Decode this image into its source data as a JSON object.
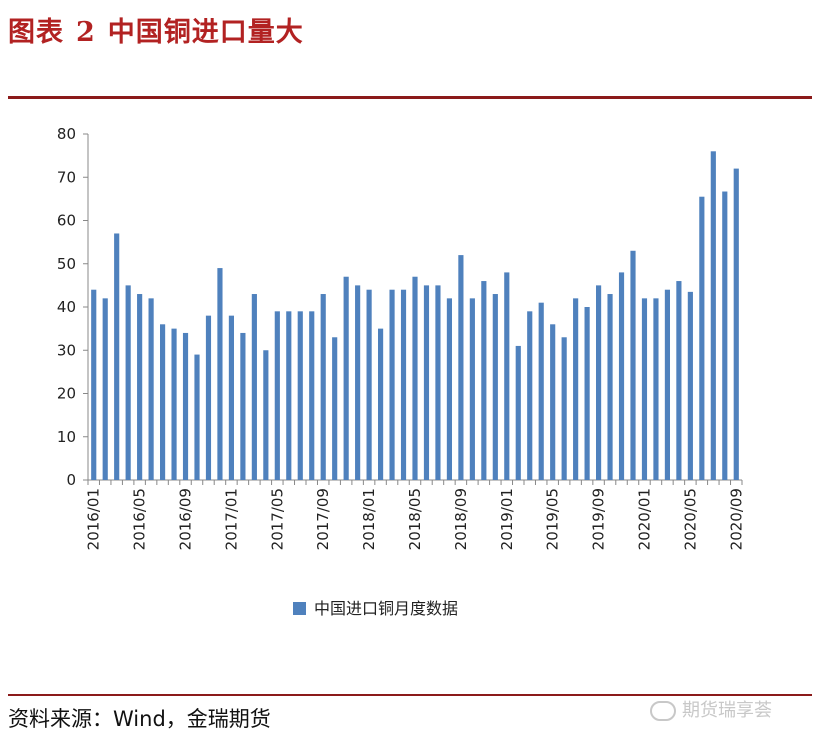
{
  "figure": {
    "label": "图表",
    "number": "2",
    "title": "中国铜进口量大"
  },
  "source": "资料来源：Wind，金瑞期货",
  "watermark": "期货瑞享荟",
  "colors": {
    "bar": "#4f81bd",
    "axis": "#888888",
    "rule": "#8b1a1a",
    "title": "#b22222"
  },
  "chart_data": {
    "type": "bar",
    "title": "中国铜进口量大",
    "xlabel": "",
    "ylabel": "",
    "ylim": [
      0,
      80
    ],
    "yticks": [
      0,
      10,
      20,
      30,
      40,
      50,
      60,
      70,
      80
    ],
    "legend": {
      "position": "bottom",
      "entries": [
        "中国进口铜月度数据"
      ]
    },
    "categories": [
      "2016/01",
      "2016/02",
      "2016/03",
      "2016/04",
      "2016/05",
      "2016/06",
      "2016/07",
      "2016/08",
      "2016/09",
      "2016/10",
      "2016/11",
      "2016/12",
      "2017/01",
      "2017/02",
      "2017/03",
      "2017/04",
      "2017/05",
      "2017/06",
      "2017/07",
      "2017/08",
      "2017/09",
      "2017/10",
      "2017/11",
      "2017/12",
      "2018/01",
      "2018/02",
      "2018/03",
      "2018/04",
      "2018/05",
      "2018/06",
      "2018/07",
      "2018/08",
      "2018/09",
      "2018/10",
      "2018/11",
      "2018/12",
      "2019/01",
      "2019/02",
      "2019/03",
      "2019/04",
      "2019/05",
      "2019/06",
      "2019/07",
      "2019/08",
      "2019/09",
      "2019/10",
      "2019/11",
      "2019/12",
      "2020/01",
      "2020/02",
      "2020/03",
      "2020/04",
      "2020/05",
      "2020/06",
      "2020/07",
      "2020/08",
      "2020/09"
    ],
    "xtick_labels": [
      "2016/01",
      "2016/05",
      "2016/09",
      "2017/01",
      "2017/05",
      "2017/09",
      "2018/01",
      "2018/05",
      "2018/09",
      "2019/01",
      "2019/05",
      "2019/09",
      "2020/01",
      "2020/05",
      "2020/09"
    ],
    "series": [
      {
        "name": "中国进口铜月度数据",
        "values": [
          44,
          42,
          57,
          45,
          43,
          42,
          36,
          35,
          34,
          29,
          38,
          49,
          38,
          34,
          43,
          30,
          39,
          39,
          39,
          39,
          43,
          33,
          47,
          45,
          44,
          35,
          44,
          44,
          47,
          45,
          45,
          42,
          52,
          42,
          46,
          43,
          48,
          31,
          39,
          41,
          36,
          33,
          42,
          40,
          45,
          43,
          48,
          53,
          42,
          42,
          44,
          46,
          43.5,
          65.5,
          76,
          66.7,
          72
        ]
      }
    ]
  }
}
